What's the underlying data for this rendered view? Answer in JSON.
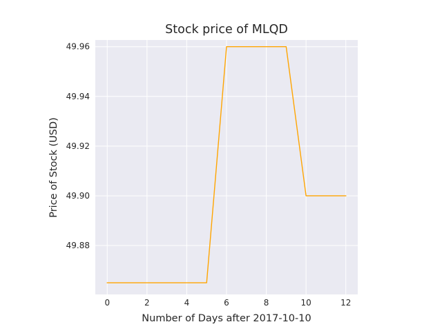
{
  "chart_data": {
    "type": "line",
    "title": "Stock price of MLQD",
    "xlabel": "Number of Days after 2017-10-10",
    "ylabel": "Price of Stock (USD)",
    "xlim": [
      -0.6,
      12.6
    ],
    "ylim": [
      49.8603,
      49.9627
    ],
    "xticks": [
      0,
      2,
      4,
      6,
      8,
      10,
      12
    ],
    "yticks": [
      49.88,
      49.9,
      49.92,
      49.94,
      49.96
    ],
    "xtick_labels": [
      "0",
      "2",
      "4",
      "6",
      "8",
      "10",
      "12"
    ],
    "ytick_labels": [
      "49.88",
      "49.90",
      "49.92",
      "49.94",
      "49.96"
    ],
    "grid": true,
    "series": [
      {
        "color": "#ffa500",
        "x": [
          0,
          1,
          2,
          3,
          4,
          5,
          6,
          7,
          8,
          9,
          10,
          11,
          12
        ],
        "y": [
          49.865,
          49.865,
          49.865,
          49.865,
          49.865,
          49.865,
          49.96,
          49.96,
          49.96,
          49.96,
          49.9,
          49.9,
          49.9
        ]
      }
    ],
    "colors": {
      "plot_background": "#eaeaf2",
      "grid": "#ffffff",
      "line": "#ffa500"
    }
  }
}
